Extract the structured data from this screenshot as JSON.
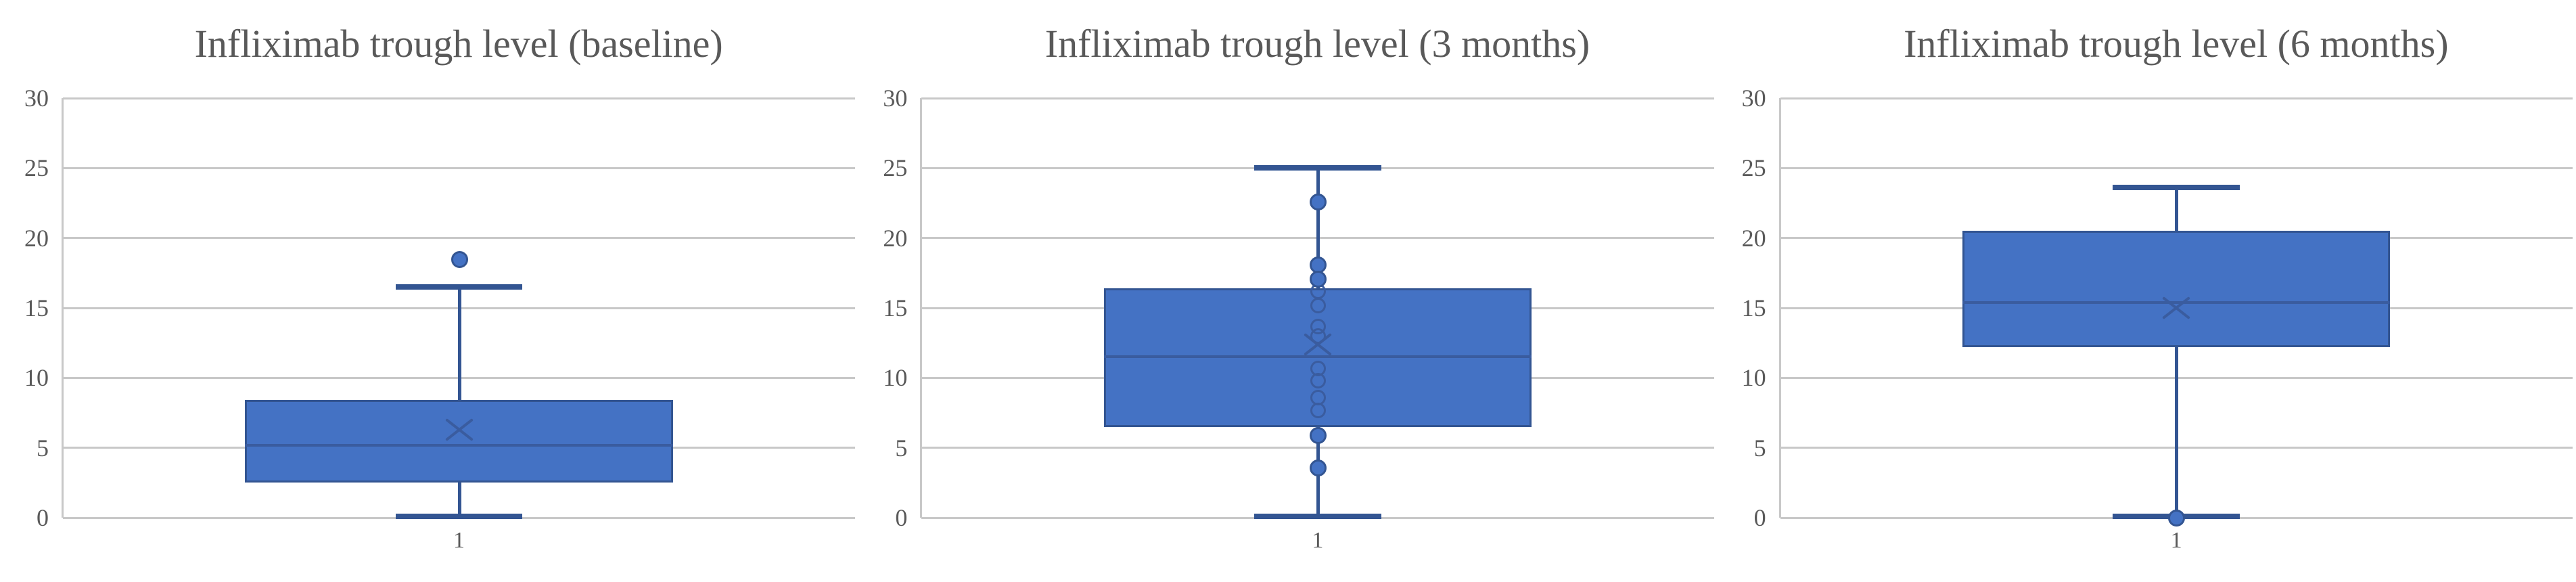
{
  "page": {
    "background": "#FFFFFF",
    "description": "Three side-by-side box-and-whisker charts of Infliximab trough levels"
  },
  "style": {
    "box_fill": "#4472C4",
    "box_line": "#335592",
    "median_line": "#3a5c9f",
    "point_line": "#3a5c9f",
    "gridline": "#C8C8C8",
    "text": "#595959",
    "background": "#FFFFFF"
  },
  "chart_data": [
    {
      "type": "box",
      "title": "Infliximab trough level (baseline)",
      "categories": [
        "1"
      ],
      "xlabel": "",
      "ylabel": "",
      "ylim": [
        0,
        30
      ],
      "yticks": [
        0,
        5,
        10,
        15,
        20,
        25,
        30
      ],
      "grid": true,
      "legend": "none",
      "box": {
        "q1": 2.5,
        "median": 5.2,
        "q3": 8.4,
        "mean": 6.3,
        "whisker_low": 0.1,
        "whisker_high": 16.5
      },
      "outlier_points": [
        18.5
      ],
      "inner_points": []
    },
    {
      "type": "box",
      "title": "Infliximab trough level (3 months)",
      "categories": [
        "1"
      ],
      "xlabel": "",
      "ylabel": "",
      "ylim": [
        0,
        30
      ],
      "yticks": [
        0,
        5,
        10,
        15,
        20,
        25,
        30
      ],
      "grid": true,
      "legend": "none",
      "box": {
        "q1": 6.5,
        "median": 11.5,
        "q3": 16.4,
        "mean": 12.4,
        "whisker_low": 0.1,
        "whisker_high": 25.0
      },
      "outlier_points": [
        22.6,
        18.1,
        17.1,
        5.9,
        3.6
      ],
      "inner_points": [
        16.2,
        15.2,
        13.7,
        13.0,
        10.7,
        9.8,
        8.6,
        7.7
      ]
    },
    {
      "type": "box",
      "title": "Infliximab trough level (6 months)",
      "categories": [
        "1"
      ],
      "xlabel": "",
      "ylabel": "",
      "ylim": [
        0,
        30
      ],
      "yticks": [
        0,
        5,
        10,
        15,
        20,
        25,
        30
      ],
      "grid": true,
      "legend": "none",
      "box": {
        "q1": 12.2,
        "median": 15.4,
        "q3": 20.5,
        "mean": 15.0,
        "whisker_low": 0.1,
        "whisker_high": 23.6
      },
      "outlier_points": [
        0
      ],
      "inner_points": []
    }
  ]
}
